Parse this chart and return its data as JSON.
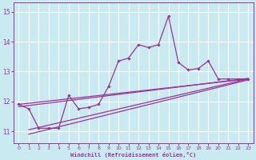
{
  "xlabel": "Windchill (Refroidissement éolien,°C)",
  "background_color": "#c8eaf0",
  "grid_color": "#ffffff",
  "line_color": "#993399",
  "xlim": [
    -0.5,
    23.5
  ],
  "ylim": [
    10.6,
    15.3
  ],
  "yticks": [
    11,
    12,
    13,
    14,
    15
  ],
  "xticks": [
    0,
    1,
    2,
    3,
    4,
    5,
    6,
    7,
    8,
    9,
    10,
    11,
    12,
    13,
    14,
    15,
    16,
    17,
    18,
    19,
    20,
    21,
    22,
    23
  ],
  "data_x": [
    0,
    1,
    2,
    3,
    4,
    5,
    6,
    7,
    8,
    9,
    10,
    11,
    12,
    13,
    14,
    15,
    16,
    17,
    18,
    19,
    20,
    21,
    22,
    23
  ],
  "data_y": [
    11.9,
    11.75,
    11.1,
    11.1,
    11.1,
    12.2,
    11.75,
    11.8,
    11.9,
    12.5,
    13.35,
    13.45,
    13.9,
    13.8,
    13.9,
    14.85,
    13.3,
    13.05,
    13.1,
    13.35,
    12.75,
    12.75,
    12.75,
    12.75
  ],
  "trend1_x": [
    0,
    23
  ],
  "trend1_y": [
    11.9,
    12.75
  ],
  "trend2_x": [
    1,
    23
  ],
  "trend2_y": [
    11.05,
    12.75
  ],
  "trend3_x": [
    1,
    23
  ],
  "trend3_y": [
    10.9,
    12.72
  ],
  "trend4_x": [
    0,
    23
  ],
  "trend4_y": [
    11.82,
    12.77
  ]
}
